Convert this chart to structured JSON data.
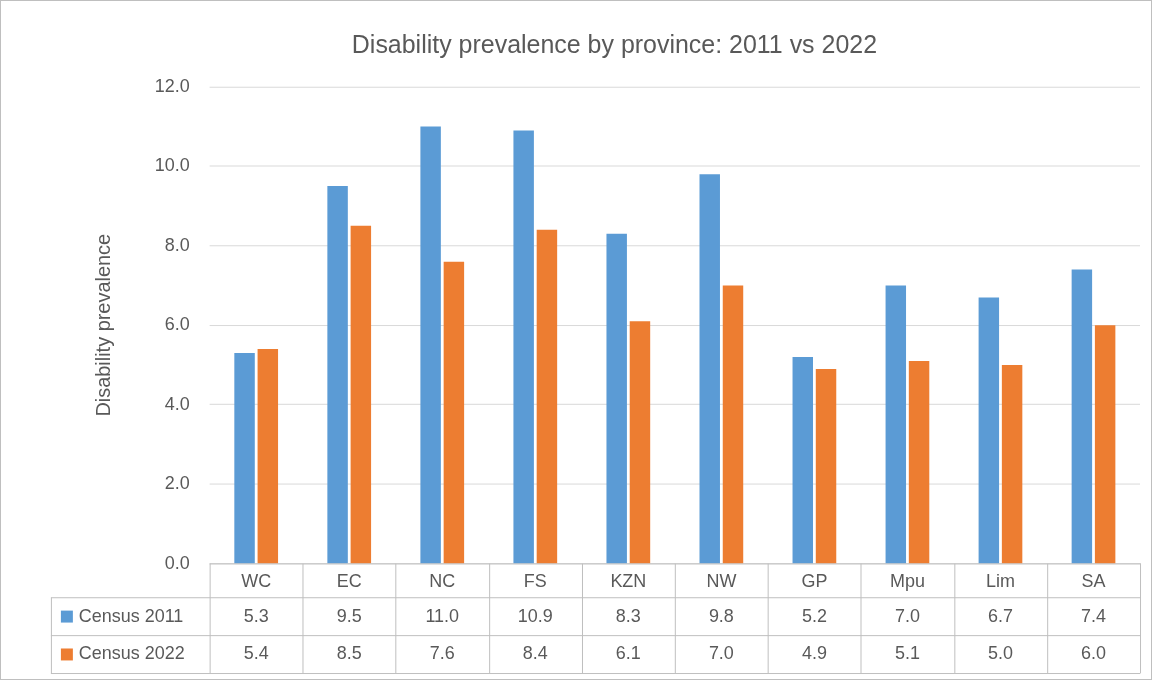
{
  "chart_data": {
    "type": "bar",
    "title": "Disability prevalence by province: 2011 vs 2022",
    "ylabel": "Disability prevalence",
    "categories": [
      "WC",
      "EC",
      "NC",
      "FS",
      "KZN",
      "NW",
      "GP",
      "Mpu",
      "Lim",
      "SA"
    ],
    "series": [
      {
        "name": "Census 2011",
        "color": "#5b9bd5",
        "values": [
          5.3,
          9.5,
          11.0,
          10.9,
          8.3,
          9.8,
          5.2,
          7.0,
          6.7,
          7.4
        ],
        "value_labels": [
          "5.3",
          "9.5",
          "11.0",
          "10.9",
          "8.3",
          "9.8",
          "5.2",
          "7.0",
          "6.7",
          "7.4"
        ]
      },
      {
        "name": "Census 2022",
        "color": "#ed7d31",
        "values": [
          5.4,
          8.5,
          7.6,
          8.4,
          6.1,
          7.0,
          4.9,
          5.1,
          5.0,
          6.0
        ],
        "value_labels": [
          "5.4",
          "8.5",
          "7.6",
          "8.4",
          "6.1",
          "7.0",
          "4.9",
          "5.1",
          "5.0",
          "6.0"
        ]
      }
    ],
    "ylim": [
      0,
      12
    ],
    "yticks": [
      {
        "value": 0,
        "label": "0.0"
      },
      {
        "value": 2,
        "label": "2.0"
      },
      {
        "value": 4,
        "label": "4.0"
      },
      {
        "value": 6,
        "label": "6.0"
      },
      {
        "value": 8,
        "label": "8.0"
      },
      {
        "value": 10,
        "label": "10.0"
      },
      {
        "value": 12,
        "label": "12.0"
      }
    ],
    "grid": "y",
    "legend": "bottom"
  }
}
